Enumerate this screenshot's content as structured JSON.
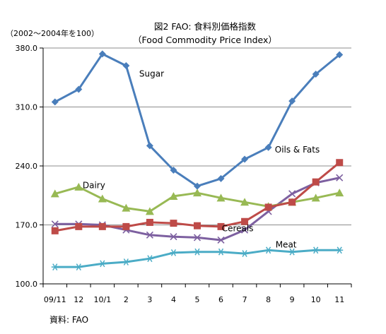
{
  "chart_data": {
    "type": "line",
    "title": "図2  FAO: 食料別価格指数",
    "subtitle": "（Food Commodity Price Index）",
    "ylabel": "（2002～2004年を100）",
    "source": "資料: FAO",
    "categories": [
      "09/11",
      "12",
      "10/1",
      "2",
      "3",
      "4",
      "5",
      "6",
      "7",
      "8",
      "9",
      "10",
      "11"
    ],
    "ylim": [
      100,
      380
    ],
    "yticks": [
      100,
      170,
      240,
      310,
      380
    ],
    "ytick_labels": [
      "100.0",
      "170.0",
      "240.0",
      "310.0",
      "380.0"
    ],
    "grid": "horizontal",
    "series": [
      {
        "name": "Sugar",
        "color": "#4a7ebb",
        "marker": "diamond",
        "values": [
          316,
          331,
          373,
          359,
          264,
          235,
          216,
          225,
          248,
          262,
          317,
          349,
          372
        ]
      },
      {
        "name": "Oils & Fats",
        "color": "#be4b48",
        "marker": "square",
        "values": [
          163,
          168,
          168,
          168,
          173,
          172,
          169,
          168,
          174,
          191,
          197,
          221,
          244
        ]
      },
      {
        "name": "Dairy",
        "color": "#98b954",
        "marker": "triangle",
        "values": [
          207,
          215,
          201,
          190,
          186,
          204,
          208,
          202,
          197,
          192,
          197,
          202,
          208
        ]
      },
      {
        "name": "Cereals",
        "color": "#7d60a0",
        "marker": "x",
        "values": [
          171,
          171,
          170,
          164,
          158,
          156,
          155,
          152,
          164,
          186,
          207,
          220,
          226
        ]
      },
      {
        "name": "Meat",
        "color": "#4bacc6",
        "marker": "star",
        "values": [
          120,
          120,
          124,
          126,
          130,
          137,
          138,
          138,
          136,
          140,
          138,
          140,
          140
        ]
      }
    ]
  }
}
